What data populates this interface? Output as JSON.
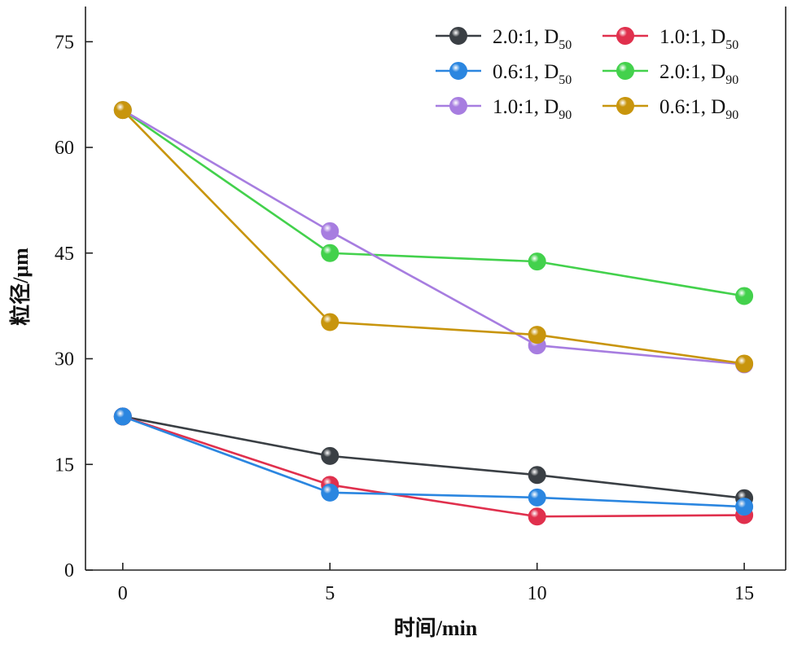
{
  "chart_data": {
    "type": "line",
    "x": [
      0,
      5,
      10,
      15
    ],
    "xlabel": "时间/min",
    "ylabel": "粒径/μm",
    "xlim": [
      -0.9,
      16.0
    ],
    "ylim": [
      0,
      80
    ],
    "xticks": [
      0,
      5,
      10,
      15
    ],
    "yticks": [
      0,
      15,
      30,
      45,
      60,
      75
    ],
    "grid": false,
    "legend_position": "top-right",
    "series": [
      {
        "name": "2.0:1, D",
        "sub": "50",
        "color": "#3a3f44",
        "values": [
          21.8,
          16.2,
          13.5,
          10.2
        ]
      },
      {
        "name": "1.0:1, D",
        "sub": "50",
        "color": "#e0304d",
        "values": [
          21.8,
          12.1,
          7.6,
          7.8
        ]
      },
      {
        "name": "0.6:1, D",
        "sub": "50",
        "color": "#2b86e0",
        "values": [
          21.8,
          11.0,
          10.3,
          9.0
        ]
      },
      {
        "name": "2.0:1, D",
        "sub": "90",
        "color": "#43d14c",
        "values": [
          65.3,
          45.0,
          43.8,
          38.9
        ]
      },
      {
        "name": "1.0:1, D",
        "sub": "90",
        "color": "#a77de0",
        "values": [
          65.3,
          48.1,
          31.9,
          29.2
        ]
      },
      {
        "name": "0.6:1, D",
        "sub": "90",
        "color": "#c8950d",
        "values": [
          65.3,
          35.2,
          33.4,
          29.3
        ]
      }
    ]
  }
}
